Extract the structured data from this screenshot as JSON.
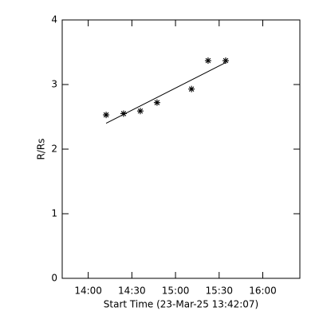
{
  "chart_data": {
    "type": "scatter",
    "xlabel": "Start Time (23-Mar-25 13:42:07)",
    "ylabel": "R/Rs",
    "xlim": [
      822.1,
      985.5
    ],
    "ylim": [
      0,
      4
    ],
    "xticks": [
      {
        "value": 840,
        "label": "14:00"
      },
      {
        "value": 870,
        "label": "14:30"
      },
      {
        "value": 900,
        "label": "15:00"
      },
      {
        "value": 930,
        "label": "15:30"
      },
      {
        "value": 960,
        "label": "16:00"
      }
    ],
    "yticks": [
      0,
      1,
      2,
      3,
      4
    ],
    "series": [
      {
        "type": "scatter",
        "marker": "asterisk",
        "color": "#000000",
        "x": [
          852.3,
          864.3,
          875.8,
          887.3,
          911.0,
          922.4,
          934.5
        ],
        "values": [
          2.53,
          2.55,
          2.59,
          2.72,
          2.93,
          3.37,
          3.37
        ]
      },
      {
        "type": "line",
        "color": "#000000",
        "x": [
          852.3,
          934.5
        ],
        "values": [
          2.4,
          3.34
        ]
      }
    ]
  }
}
